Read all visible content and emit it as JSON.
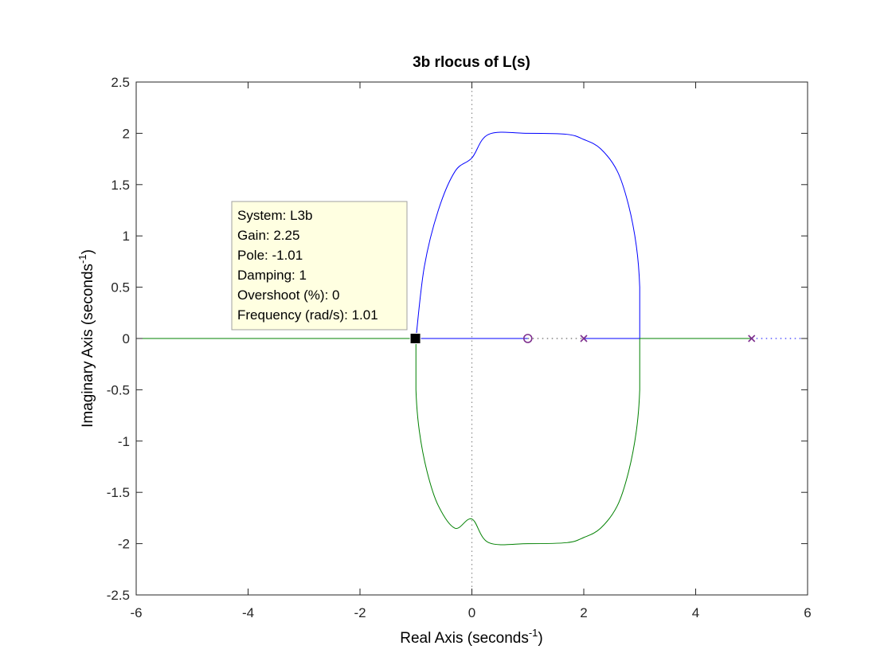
{
  "chart_data": {
    "type": "line",
    "title": "3b rlocus of L(s)",
    "xlabel": {
      "main": "Real Axis (seconds",
      "sup": "-1",
      "close": ")"
    },
    "ylabel": {
      "main": "Imaginary Axis (seconds",
      "sup": "-1",
      "close": ")"
    },
    "xlim": [
      -6,
      6
    ],
    "ylim": [
      -2.5,
      2.5
    ],
    "xticks": [
      -6,
      -4,
      -2,
      0,
      2,
      4,
      6
    ],
    "xtick_labels": [
      "-6",
      "-4",
      "-2",
      "0",
      "2",
      "4",
      "6"
    ],
    "yticks": [
      2.5,
      2,
      1.5,
      1,
      0.5,
      0,
      -0.5,
      -1,
      -1.5,
      -2,
      -2.5
    ],
    "ytick_labels": [
      "2.5",
      "2",
      "1.5",
      "1",
      "0.5",
      "0",
      "-0.5",
      "-1",
      "-1.5",
      "-2",
      "-2.5"
    ],
    "grid": false,
    "series": [
      {
        "color": "#0000ff",
        "style": "solid",
        "points": [
          [
            2,
            0
          ],
          [
            3,
            0
          ],
          [
            3,
            0.5
          ],
          [
            2.94,
            0.9
          ],
          [
            2.8,
            1.3
          ],
          [
            2.6,
            1.63
          ],
          [
            2.3,
            1.85
          ],
          [
            2,
            1.94
          ],
          [
            1.7,
            1.99
          ],
          [
            1,
            2
          ],
          [
            0.3,
            1.99
          ],
          [
            0,
            1.76
          ],
          [
            -0.3,
            1.63
          ],
          [
            -0.6,
            1.25
          ],
          [
            -0.85,
            0.7
          ],
          [
            -1,
            0
          ],
          [
            -1,
            0
          ],
          [
            0.5,
            0
          ],
          [
            1,
            0
          ]
        ]
      },
      {
        "color": "#008000",
        "style": "solid",
        "points": [
          [
            -6,
            0
          ],
          [
            -1,
            0
          ],
          [
            -1,
            -0.5
          ],
          [
            -0.94,
            -0.9
          ],
          [
            -0.8,
            -1.3
          ],
          [
            -0.6,
            -1.63
          ],
          [
            -0.3,
            -1.85
          ],
          [
            0,
            -1.76
          ],
          [
            0.3,
            -1.99
          ],
          [
            1,
            -2
          ],
          [
            1.7,
            -1.99
          ],
          [
            2,
            -1.94
          ],
          [
            2.3,
            -1.85
          ],
          [
            2.6,
            -1.63
          ],
          [
            2.8,
            -1.3
          ],
          [
            2.94,
            -0.9
          ],
          [
            3,
            -0.5
          ],
          [
            3,
            0
          ],
          [
            5,
            0
          ]
        ]
      },
      {
        "color": "#0000ff",
        "style": "dotted",
        "points": [
          [
            5,
            0
          ],
          [
            6,
            0
          ]
        ]
      },
      {
        "color": "#404040",
        "style": "dotted",
        "points": [
          [
            1,
            0
          ],
          [
            2,
            0
          ]
        ]
      }
    ],
    "reference_lines": [
      {
        "orientation": "vertical",
        "value": 0,
        "color": "#8c8c8c",
        "style": "dotted"
      }
    ],
    "poles": [
      {
        "x": 2,
        "y": 0,
        "marker": "x",
        "color": "#7e2f8e"
      },
      {
        "x": 5,
        "y": 0,
        "marker": "x",
        "color": "#7e2f8e"
      }
    ],
    "zeros": [
      {
        "x": 1,
        "y": 0,
        "marker": "o",
        "color": "#7e2f8e"
      }
    ],
    "datatip": {
      "x": -1.01,
      "y": 0,
      "marker": "square",
      "lines": [
        "System: L3b",
        "Gain: 2.25",
        "Pole: -1.01",
        "Damping: 1",
        "Overshoot (%): 0",
        "Frequency (rad/s): 1.01"
      ],
      "background": "#ffffe1"
    }
  }
}
